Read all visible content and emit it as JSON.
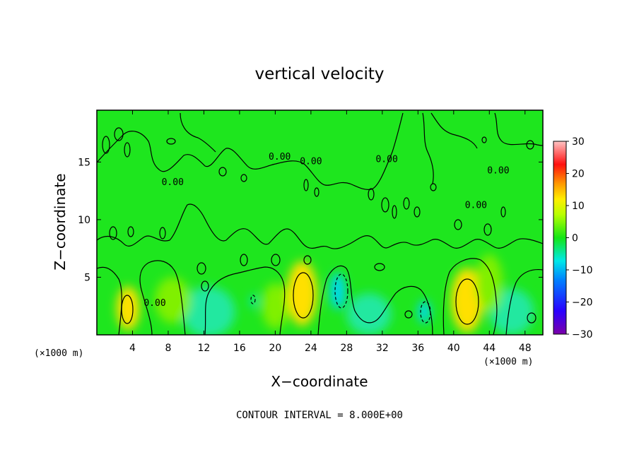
{
  "chart_data": {
    "type": "heatmap",
    "title": "vertical velocity",
    "xlabel": "X−coordinate",
    "ylabel": "Z−coordinate",
    "x_unit_left": "(×1000 m)",
    "x_unit_right": "(×1000 m)",
    "xlim": [
      0,
      50
    ],
    "ylim": [
      0,
      19.5
    ],
    "x_ticks": [
      4,
      8,
      12,
      16,
      20,
      24,
      28,
      32,
      36,
      40,
      44,
      48
    ],
    "x_tick_labels": [
      "4",
      "8",
      "12",
      "16",
      "20",
      "24",
      "28",
      "32",
      "36",
      "40",
      "44",
      "48"
    ],
    "y_ticks": [
      5,
      10,
      15
    ],
    "y_tick_labels": [
      "5",
      "10",
      "15"
    ],
    "colorbar": {
      "range": [
        -30,
        30
      ],
      "ticks": [
        30,
        20,
        10,
        0,
        -10,
        -20,
        -30
      ],
      "tick_labels": [
        "30",
        "20",
        "10",
        "0",
        "−10",
        "−20",
        "−30"
      ]
    },
    "contour_labels": [
      {
        "text": "0.00",
        "x": 20.5,
        "y": 15.2
      },
      {
        "text": "0.00",
        "x": 32.5,
        "y": 15.0
      },
      {
        "text": "0.00",
        "x": 45.0,
        "y": 14.0
      },
      {
        "text": "0.00",
        "x": 8.5,
        "y": 13.0
      },
      {
        "text": "0.00",
        "x": 42.5,
        "y": 11.0
      },
      {
        "text": "0.00",
        "x": 6.5,
        "y": 2.5
      },
      {
        "text": "0.00",
        "x": 24.0,
        "y": 14.8
      }
    ],
    "cells": [
      {
        "x": 3.5,
        "y": 2.3,
        "sx": 1.3,
        "sy": 1.9,
        "v": 12
      },
      {
        "x": 23.0,
        "y": 3.6,
        "sx": 1.7,
        "sy": 2.8,
        "v": 12
      },
      {
        "x": 41.5,
        "y": 3.0,
        "sx": 1.8,
        "sy": 2.8,
        "v": 12
      },
      {
        "x": 27.0,
        "y": 3.8,
        "sx": 0.9,
        "sy": 1.6,
        "v": -9
      },
      {
        "x": 36.7,
        "y": 2.0,
        "sx": 0.7,
        "sy": 1.0,
        "v": -9
      },
      {
        "x": 17.6,
        "y": 2.9,
        "sx": 0.4,
        "sy": 0.6,
        "v": -7
      },
      {
        "x": 12.5,
        "y": 2.0,
        "sx": 3.0,
        "sy": 2.2,
        "v": -3
      },
      {
        "x": 30.5,
        "y": 1.8,
        "sx": 2.5,
        "sy": 1.8,
        "v": -3
      },
      {
        "x": 46.5,
        "y": 2.0,
        "sx": 2.5,
        "sy": 2.0,
        "v": -3
      },
      {
        "x": 8.5,
        "y": 3.0,
        "sx": 2.0,
        "sy": 2.0,
        "v": 4
      },
      {
        "x": 20.0,
        "y": 2.5,
        "sx": 1.5,
        "sy": 2.0,
        "v": 4
      },
      {
        "x": 44.0,
        "y": 4.5,
        "sx": 1.5,
        "sy": 2.5,
        "v": 4
      }
    ],
    "contour_interval_text": "CONTOUR INTERVAL = 8.000E+00"
  }
}
